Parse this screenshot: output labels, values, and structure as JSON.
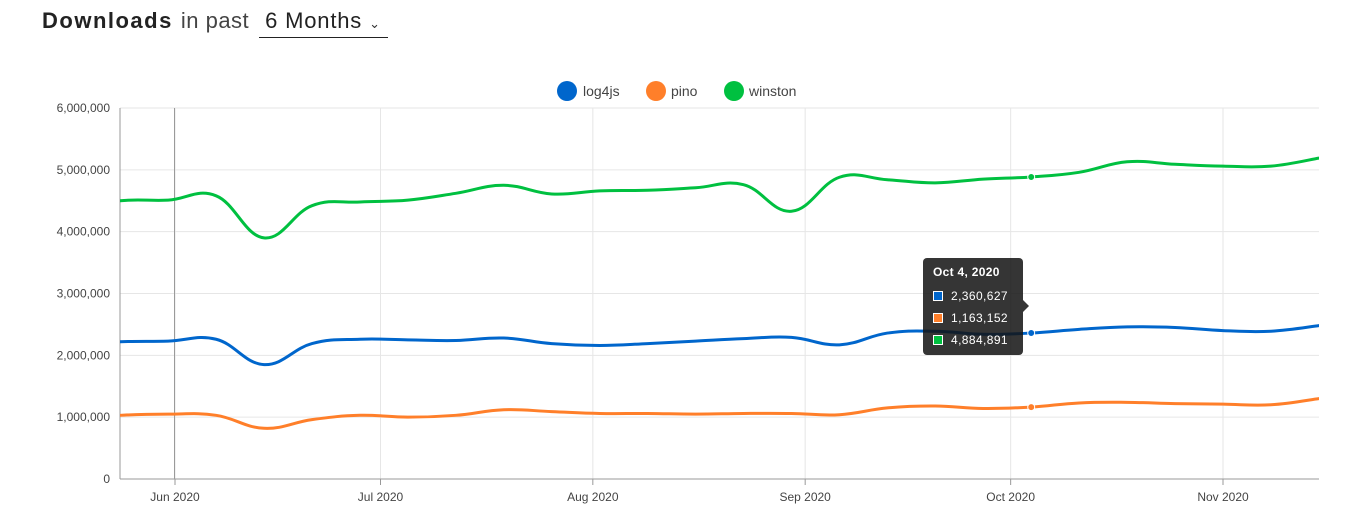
{
  "header": {
    "title": "Downloads",
    "subtitle": "in past",
    "period_value": "6 Months"
  },
  "chart_data": {
    "type": "line",
    "x_dates": [
      "2020-05-16",
      "2020-05-24",
      "2020-05-31",
      "2020-06-07",
      "2020-06-14",
      "2020-06-21",
      "2020-06-28",
      "2020-07-05",
      "2020-07-12",
      "2020-07-19",
      "2020-07-26",
      "2020-08-02",
      "2020-08-09",
      "2020-08-16",
      "2020-08-23",
      "2020-08-30",
      "2020-09-06",
      "2020-09-13",
      "2020-09-20",
      "2020-09-27",
      "2020-10-04",
      "2020-10-11",
      "2020-10-18",
      "2020-10-25",
      "2020-11-01",
      "2020-11-08",
      "2020-11-15"
    ],
    "x_tick_labels": [
      "Jun 2020",
      "Jul 2020",
      "Aug 2020",
      "Sep 2020",
      "Oct 2020",
      "Nov 2020"
    ],
    "x_tick_dates": [
      "2020-06-01",
      "2020-07-01",
      "2020-08-01",
      "2020-09-01",
      "2020-10-01",
      "2020-11-01"
    ],
    "x_range": [
      "2020-05-24",
      "2020-11-15"
    ],
    "y_ticks": [
      "6,000,000",
      "5,000,000",
      "4,000,000",
      "3,000,000",
      "2,000,000",
      "1,000,000",
      "0"
    ],
    "ylim": [
      0,
      6000000
    ],
    "grid": true,
    "legend_position": "top-center",
    "series": [
      {
        "name": "log4js",
        "color": "#0066cc",
        "values": [
          2170000,
          2220000,
          2230000,
          2260000,
          1850000,
          2190000,
          2260000,
          2250000,
          2240000,
          2280000,
          2190000,
          2160000,
          2190000,
          2230000,
          2270000,
          2290000,
          2170000,
          2360000,
          2390000,
          2340000,
          2360627,
          2420000,
          2460000,
          2450000,
          2400000,
          2390000,
          2480000
        ]
      },
      {
        "name": "pino",
        "color": "#ff7f2a",
        "values": [
          950000,
          1030000,
          1050000,
          1030000,
          820000,
          960000,
          1030000,
          1000000,
          1030000,
          1120000,
          1090000,
          1060000,
          1060000,
          1050000,
          1060000,
          1060000,
          1040000,
          1150000,
          1180000,
          1140000,
          1163152,
          1230000,
          1240000,
          1220000,
          1210000,
          1200000,
          1300000
        ]
      },
      {
        "name": "winston",
        "color": "#00c040",
        "values": [
          4350000,
          4500000,
          4510000,
          4580000,
          3900000,
          4420000,
          4480000,
          4510000,
          4620000,
          4750000,
          4610000,
          4660000,
          4670000,
          4710000,
          4760000,
          4330000,
          4880000,
          4840000,
          4790000,
          4850000,
          4884891,
          4960000,
          5130000,
          5090000,
          5060000,
          5060000,
          5190000
        ]
      }
    ],
    "tooltip": {
      "title": "Oct 4, 2020",
      "rows": [
        {
          "series": "log4js",
          "value": "2,360,627",
          "color": "#0066cc"
        },
        {
          "series": "pino",
          "value": "1,163,152",
          "color": "#ff7f2a"
        },
        {
          "series": "winston",
          "value": "4,884,891",
          "color": "#00c040"
        }
      ]
    },
    "hover_date": "2020-06-01"
  }
}
